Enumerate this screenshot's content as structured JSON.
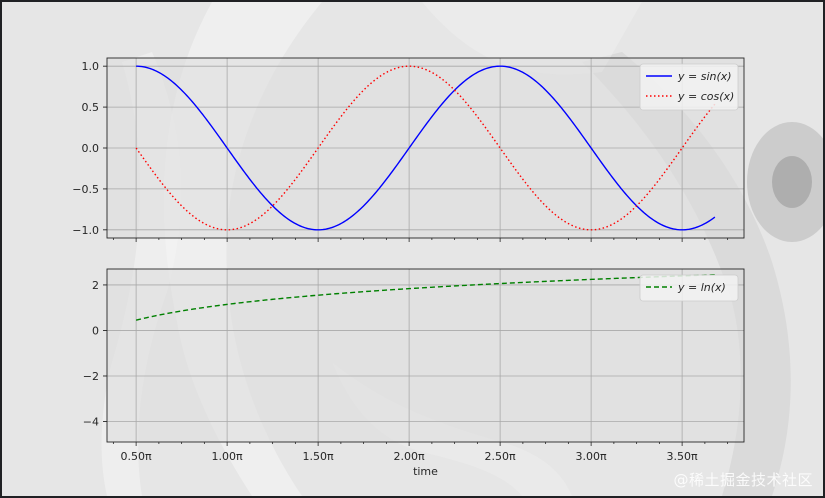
{
  "watermark": "@稀土掘金技术社区",
  "colors": {
    "sin": "#0000ff",
    "cos": "#ff0000",
    "ln": "#008000",
    "grid": "#a8a8a8",
    "axes_face": "#dcdcdc"
  },
  "chart_data": [
    {
      "type": "line",
      "xlabel": "",
      "x_unit": "pi",
      "x_range": [
        0.5,
        3.68
      ],
      "xlim": [
        0.34,
        3.84
      ],
      "ylim": [
        -1.1,
        1.1
      ],
      "yticks": [
        1.0,
        0.5,
        0.0,
        -0.5,
        -1.0
      ],
      "ytick_labels": [
        "1.0",
        "0.5",
        "0.0",
        "−0.5",
        "−1.0"
      ],
      "grid": true,
      "legend_position": "top-right",
      "series": [
        {
          "name": "y = sin(x)",
          "legend_prefix": "y = ",
          "legend_func": "sin(x)",
          "function": "sin",
          "style": "solid",
          "color": "#0000ff"
        },
        {
          "name": "y = cos(x)",
          "legend_prefix": "y = ",
          "legend_func": "cos(x)",
          "function": "cos",
          "style": "dotted",
          "color": "#ff0000"
        }
      ]
    },
    {
      "type": "line",
      "xlabel": "time",
      "x_unit": "pi",
      "x_range": [
        0.5,
        3.68
      ],
      "xlim": [
        0.34,
        3.84
      ],
      "ylim": [
        -4.9,
        2.7
      ],
      "xticks": [
        0.5,
        1.0,
        1.5,
        2.0,
        2.5,
        3.0,
        3.5
      ],
      "xtick_labels": [
        "0.50π",
        "1.00π",
        "1.50π",
        "2.00π",
        "2.50π",
        "3.00π",
        "3.50π"
      ],
      "yticks": [
        2,
        0,
        -2,
        -4
      ],
      "ytick_labels": [
        "2",
        "0",
        "−2",
        "−4"
      ],
      "grid": true,
      "legend_position": "top-right",
      "series": [
        {
          "name": "y = ln(x)",
          "legend_prefix": "y = ",
          "legend_func": "ln(x)",
          "function": "ln",
          "style": "dashed",
          "color": "#008000"
        }
      ]
    }
  ]
}
